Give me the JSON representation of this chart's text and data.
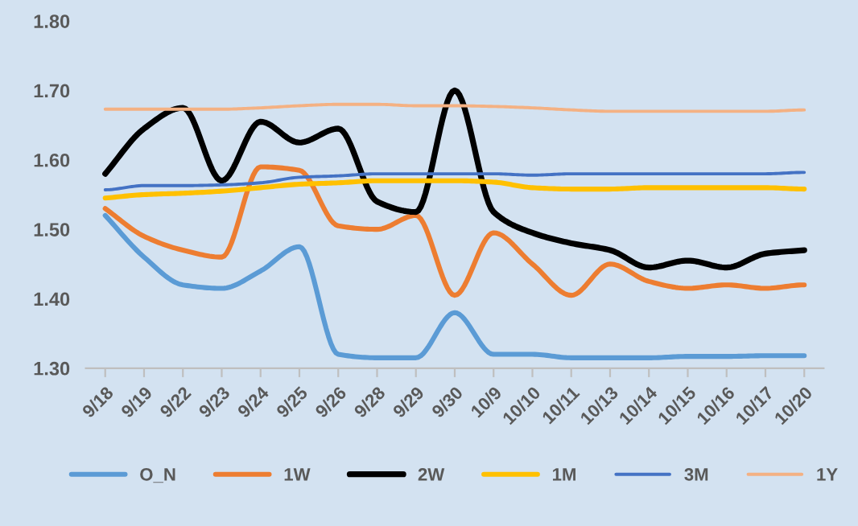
{
  "chart_data": {
    "type": "line",
    "categories": [
      "9/18",
      "9/19",
      "9/22",
      "9/23",
      "9/24",
      "9/25",
      "9/26",
      "9/28",
      "9/29",
      "9/30",
      "10/9",
      "10/10",
      "10/11",
      "10/13",
      "10/14",
      "10/15",
      "10/16",
      "10/17",
      "10/20"
    ],
    "series": [
      {
        "name": "O_N",
        "color": "#5b9bd5",
        "values": [
          1.52,
          1.46,
          1.42,
          1.415,
          1.44,
          1.475,
          1.32,
          1.315,
          1.315,
          1.38,
          1.32,
          1.32,
          1.315,
          1.315,
          1.315,
          1.317,
          1.317,
          1.318,
          1.318
        ]
      },
      {
        "name": "1W",
        "color": "#ed7d31",
        "values": [
          1.53,
          1.49,
          1.47,
          1.46,
          1.59,
          1.585,
          1.505,
          1.5,
          1.52,
          1.405,
          1.495,
          1.45,
          1.405,
          1.45,
          1.425,
          1.415,
          1.42,
          1.415,
          1.42
        ]
      },
      {
        "name": "2W",
        "color": "#000000",
        "values": [
          1.58,
          1.645,
          1.675,
          1.57,
          1.655,
          1.625,
          1.645,
          1.54,
          1.525,
          1.7,
          1.525,
          1.495,
          1.48,
          1.47,
          1.445,
          1.455,
          1.445,
          1.465,
          1.47
        ]
      },
      {
        "name": "1M",
        "color": "#ffc000",
        "values": [
          1.545,
          1.55,
          1.552,
          1.555,
          1.56,
          1.565,
          1.567,
          1.57,
          1.57,
          1.57,
          1.568,
          1.56,
          1.558,
          1.558,
          1.56,
          1.56,
          1.56,
          1.56,
          1.558
        ]
      },
      {
        "name": "3M",
        "color": "#4472c4",
        "values": [
          1.557,
          1.563,
          1.563,
          1.564,
          1.567,
          1.575,
          1.577,
          1.58,
          1.58,
          1.58,
          1.58,
          1.578,
          1.58,
          1.58,
          1.58,
          1.58,
          1.58,
          1.58,
          1.582
        ]
      },
      {
        "name": "1Y",
        "color": "#f4b183",
        "values": [
          1.673,
          1.673,
          1.673,
          1.673,
          1.675,
          1.678,
          1.68,
          1.68,
          1.678,
          1.678,
          1.677,
          1.675,
          1.672,
          1.67,
          1.67,
          1.67,
          1.67,
          1.67,
          1.672
        ]
      }
    ],
    "ylim": [
      1.3,
      1.8
    ],
    "yticks": [
      {
        "value": 1.3,
        "label": "1.30"
      },
      {
        "value": 1.4,
        "label": "1.40"
      },
      {
        "value": 1.5,
        "label": "1.50"
      },
      {
        "value": 1.6,
        "label": "1.60"
      },
      {
        "value": 1.7,
        "label": "1.70"
      },
      {
        "value": 1.8,
        "label": "1.80"
      }
    ],
    "grid": false,
    "legend": "bottom",
    "marker": "none",
    "line_style": "solid"
  }
}
